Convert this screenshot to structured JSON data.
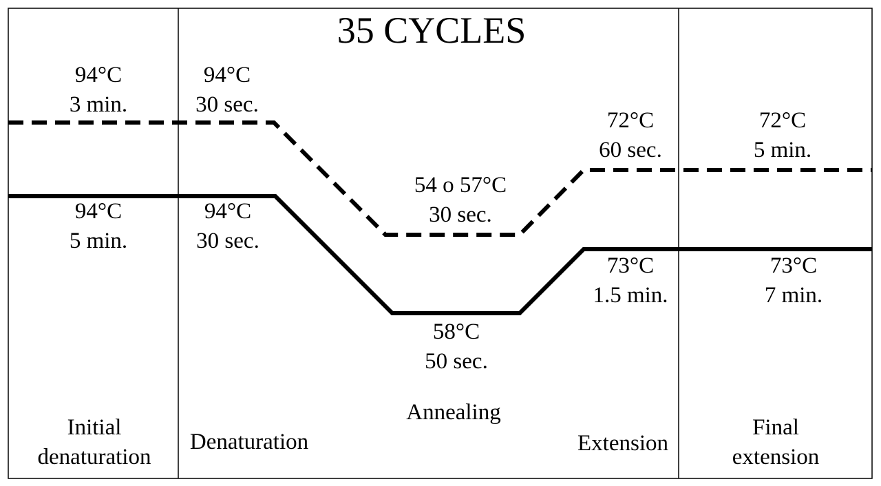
{
  "title": "35 CYCLES",
  "phases": {
    "initial": [
      "Initial",
      "denaturation"
    ],
    "denaturation": "Denaturation",
    "annealing": "Annealing",
    "extension": "Extension",
    "final": [
      "Final",
      "extension"
    ]
  },
  "dashed_profile": {
    "line_style": "dashed",
    "steps": [
      {
        "temp": "94°C",
        "time": "3 min."
      },
      {
        "temp": "94°C",
        "time": "30 sec."
      },
      {
        "temp": "54 o 57°C",
        "time": "30 sec."
      },
      {
        "temp": "72°C",
        "time": "60 sec."
      },
      {
        "temp": "72°C",
        "time": "5 min."
      }
    ]
  },
  "solid_profile": {
    "line_style": "solid",
    "steps": [
      {
        "temp": "94°C",
        "time": "5 min."
      },
      {
        "temp": "94°C",
        "time": "30 sec."
      },
      {
        "temp": "58°C",
        "time": "50 sec."
      },
      {
        "temp": "73°C",
        "time": "1.5 min."
      },
      {
        "temp": "73°C",
        "time": "7 min."
      }
    ]
  },
  "colors": {
    "line": "#000000",
    "background": "#ffffff"
  }
}
